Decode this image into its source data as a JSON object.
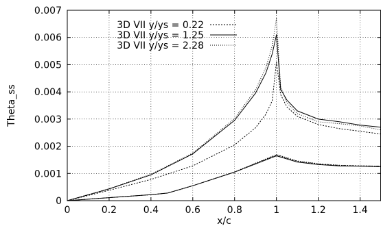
{
  "chart_data": {
    "type": "line",
    "title": "",
    "xlabel": "x/c",
    "ylabel": "Theta_ss",
    "xlim": [
      0,
      1.5
    ],
    "ylim": [
      0,
      0.007
    ],
    "xticks": [
      0,
      0.2,
      0.4,
      0.6,
      0.8,
      1,
      1.2,
      1.4
    ],
    "xtick_labels": [
      "0",
      "0.2",
      "0.4",
      "0.6",
      "0.8",
      "1",
      "1.2",
      "1.4"
    ],
    "yticks": [
      0,
      0.001,
      0.002,
      0.003,
      0.004,
      0.005,
      0.006,
      0.007
    ],
    "ytick_labels": [
      "0",
      "0.001",
      "0.002",
      "0.003",
      "0.004",
      "0.005",
      "0.006",
      "0.007"
    ],
    "grid": true,
    "legend_position": "top-left",
    "series": [
      {
        "name": "3D VII y/ys = 0.22",
        "style": "dashed-fine",
        "dash": "2 2",
        "segments": [
          {
            "x": [
              0,
              0.2,
              0.4,
              0.6,
              0.8,
              0.9,
              0.95,
              0.98,
              1.0
            ],
            "y": [
              0,
              0.00038,
              0.00078,
              0.00128,
              0.00205,
              0.00268,
              0.00318,
              0.00368,
              0.0051
            ]
          },
          {
            "x": [
              1.0,
              1.02,
              1.05,
              1.1,
              1.2,
              1.3,
              1.4,
              1.5
            ],
            "y": [
              0.0051,
              0.0039,
              0.00345,
              0.0031,
              0.0028,
              0.00265,
              0.00255,
              0.00245
            ]
          },
          {
            "x": [
              0,
              0.2,
              0.4,
              0.48,
              0.6,
              0.8,
              1.0
            ],
            "y": [
              0,
              0.00011,
              0.00022,
              0.00028,
              0.00055,
              0.00105,
              0.00168
            ]
          },
          {
            "x": [
              1.0,
              1.1,
              1.2,
              1.3,
              1.4,
              1.5
            ],
            "y": [
              0.00168,
              0.00145,
              0.00135,
              0.0013,
              0.00128,
              0.00127
            ]
          }
        ]
      },
      {
        "name": "3D VII y/ys = 1.25",
        "style": "solid",
        "dash": "",
        "segments": [
          {
            "x": [
              0,
              0.2,
              0.4,
              0.6,
              0.8,
              0.9,
              0.95,
              0.98,
              1.0
            ],
            "y": [
              0,
              0.00043,
              0.00095,
              0.00172,
              0.00295,
              0.00395,
              0.0047,
              0.0054,
              0.0061
            ]
          },
          {
            "x": [
              1.0,
              1.02,
              1.05,
              1.1,
              1.2,
              1.3,
              1.4,
              1.5
            ],
            "y": [
              0.0061,
              0.0041,
              0.0037,
              0.0033,
              0.003,
              0.0029,
              0.00278,
              0.0027
            ]
          },
          {
            "x": [
              0,
              0.2,
              0.4,
              0.48,
              0.6,
              0.8,
              1.0
            ],
            "y": [
              0,
              0.00011,
              0.00022,
              0.00028,
              0.00055,
              0.00105,
              0.00165
            ]
          },
          {
            "x": [
              1.0,
              1.1,
              1.2,
              1.3,
              1.4,
              1.5
            ],
            "y": [
              0.00165,
              0.00142,
              0.00133,
              0.00128,
              0.00127,
              0.00125
            ]
          }
        ]
      },
      {
        "name": "3D VII y/ys = 2.28",
        "style": "dotted",
        "dash": "1 2",
        "segments": [
          {
            "x": [
              0,
              0.2,
              0.4,
              0.6,
              0.8,
              0.9,
              0.95,
              0.98,
              1.0
            ],
            "y": [
              0,
              0.00044,
              0.00097,
              0.00175,
              0.00302,
              0.00408,
              0.0049,
              0.0057,
              0.0067
            ]
          },
          {
            "x": [
              1.0,
              1.02,
              1.05,
              1.1,
              1.2,
              1.3,
              1.4,
              1.5
            ],
            "y": [
              0.0067,
              0.0042,
              0.0036,
              0.0032,
              0.0029,
              0.00283,
              0.00275,
              0.0026
            ]
          },
          {
            "x": [
              0,
              0.2,
              0.4,
              0.48,
              0.6,
              0.8,
              1.0
            ],
            "y": [
              0,
              0.00011,
              0.00022,
              0.00028,
              0.00055,
              0.00106,
              0.0017
            ]
          },
          {
            "x": [
              1.0,
              1.1,
              1.2,
              1.3,
              1.4,
              1.5
            ],
            "y": [
              0.0017,
              0.00146,
              0.00136,
              0.0013,
              0.00128,
              0.00127
            ]
          }
        ]
      }
    ]
  }
}
